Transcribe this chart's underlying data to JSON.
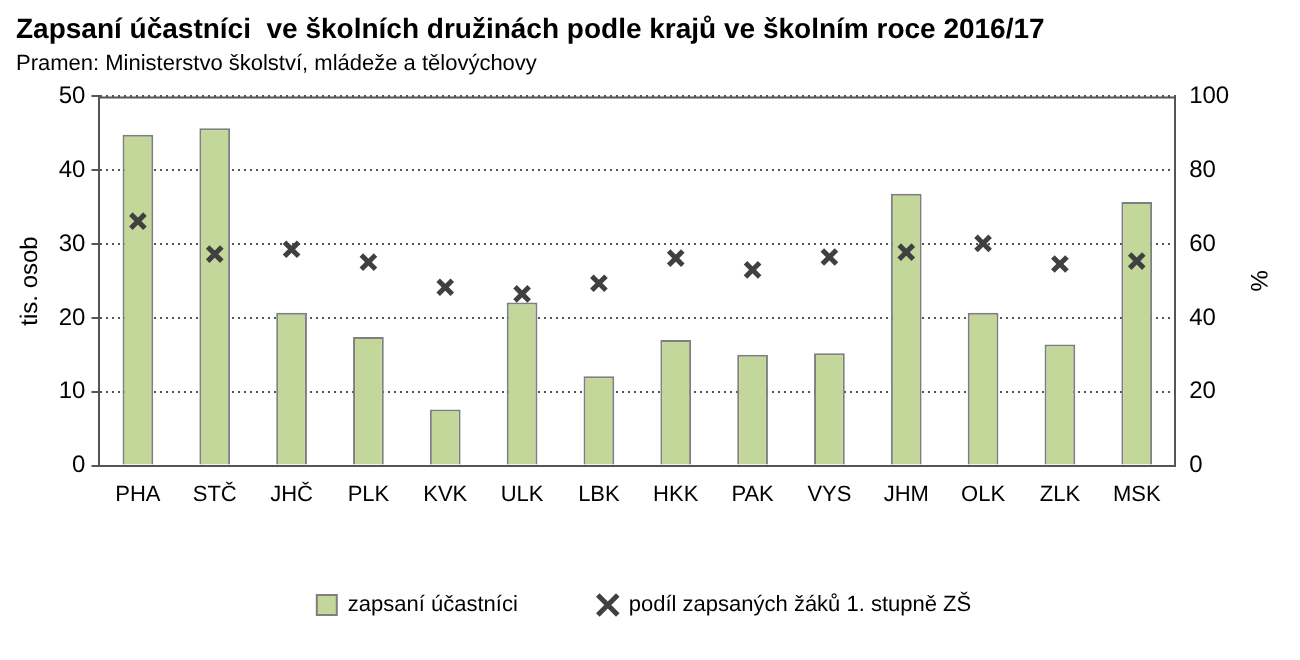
{
  "chart_data": {
    "type": "bar",
    "title": "Zapsaní účastníci  ve školních družinách podle krajů ve školním roce 2016/17",
    "subtitle": "Pramen: Ministerstvo školství, mládeže a tělovýchovy",
    "ylabel": "tis. osob",
    "y2label": "%",
    "categories": [
      "PHA",
      "STČ",
      "JHČ",
      "PLK",
      "KVK",
      "ULK",
      "LBK",
      "HKK",
      "PAK",
      "VYS",
      "JHM",
      "OLK",
      "ZLK",
      "MSK"
    ],
    "series": [
      {
        "name": "zapsaní účastníci",
        "color": "#c4d79b",
        "values": [
          44.8,
          45.7,
          20.7,
          17.4,
          7.6,
          22.1,
          12.1,
          17.0,
          15.0,
          15.2,
          36.8,
          20.7,
          16.4,
          35.7
        ]
      },
      {
        "name": "podíl zapsaných žáků 1. stupně ZŠ",
        "type": "scatter",
        "axis": "y2",
        "marker": "cross",
        "color": "#404040",
        "values": [
          66.2,
          57.3,
          58.6,
          55.1,
          48.3,
          46.5,
          49.4,
          56.2,
          53.0,
          56.5,
          57.8,
          60.2,
          54.6,
          55.4
        ]
      }
    ],
    "ylim": [
      0,
      50
    ],
    "yticks": [
      0,
      10,
      20,
      30,
      40,
      50
    ],
    "y2lim": [
      0,
      100
    ],
    "y2ticks": [
      0,
      20,
      40,
      60,
      80,
      100
    ],
    "grid": "y",
    "legend": "bottom"
  }
}
